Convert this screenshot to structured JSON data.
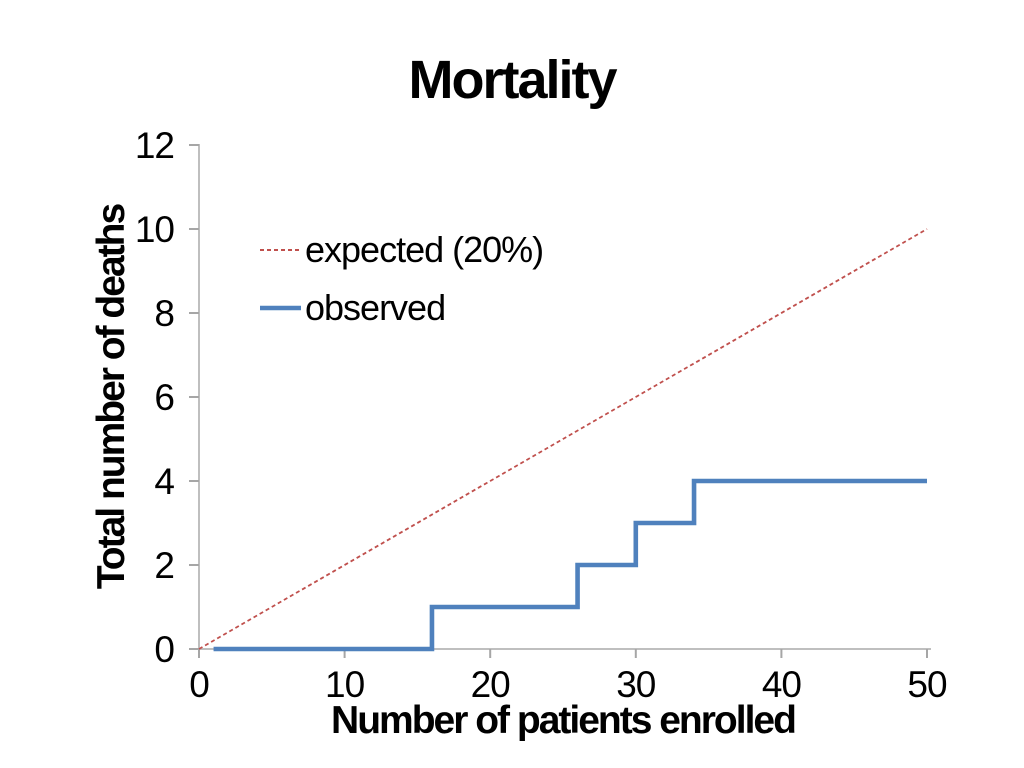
{
  "slide": {
    "background": "#ffffff"
  },
  "chart_data": {
    "type": "line",
    "title": "Mortality",
    "xlabel": "Number of patients enrolled",
    "ylabel": "Total number of deaths",
    "xlim": [
      0,
      50
    ],
    "ylim": [
      0,
      12
    ],
    "xticks": [
      0,
      10,
      20,
      30,
      40,
      50
    ],
    "yticks": [
      0,
      2,
      4,
      6,
      8,
      10,
      12
    ],
    "grid": false,
    "legend_position": "inside-upper-left",
    "axis_color": "#bfbfbf",
    "tick_color": "#a6a6a6",
    "text_color": "#000000",
    "series": [
      {
        "name": "expected (20%)",
        "style": "dashed",
        "color": "#c0504d",
        "width": 1.8,
        "x": [
          0,
          50
        ],
        "y": [
          0,
          10
        ]
      },
      {
        "name": "observed",
        "style": "solid",
        "color": "#4f81bd",
        "width": 4.6,
        "x": [
          1,
          16,
          16,
          26,
          26,
          30,
          30,
          34,
          34,
          50
        ],
        "y": [
          0,
          0,
          1,
          1,
          2,
          2,
          3,
          3,
          4,
          4
        ],
        "step_up_at_x": [
          16,
          26,
          30,
          34
        ]
      }
    ]
  }
}
